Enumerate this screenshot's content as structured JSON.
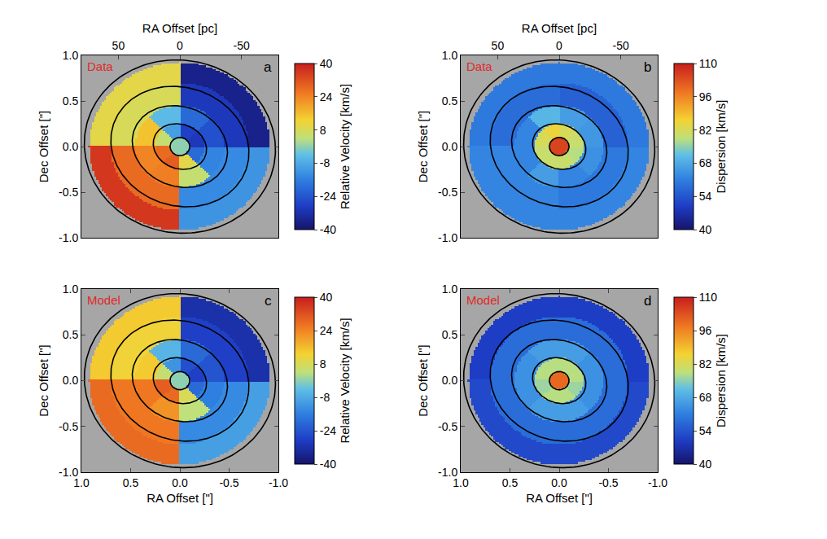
{
  "chart_data": [
    {
      "type": "heatmap",
      "title": "Data",
      "label": "a",
      "x2label": "RA Offset [pc]",
      "x2lim": [
        80,
        -80
      ],
      "x2ticks": [
        50,
        0,
        -50
      ],
      "xlim": [
        1,
        -1
      ],
      "ylabel": "Dec Offset [\"]",
      "ylim": [
        -1,
        1
      ],
      "yticks": [
        {
          "value": -1,
          "label": "-1.0"
        },
        -0.5,
        {
          "value": 0,
          "label": "0.0"
        },
        0.5,
        {
          "value": 1,
          "label": "1.0"
        }
      ],
      "colorbar_title": "Relative Velocity [km/s]",
      "colorbar_range": [
        -40,
        40
      ],
      "colorbar_ticks": [
        40,
        24,
        8,
        -8,
        -24,
        -40
      ],
      "cells": {
        "ring_edges": [
          0,
          0.1,
          0.25,
          0.45,
          0.7,
          0.92
        ],
        "values": [
          [
            0
          ],
          [
            -10,
            5,
            28,
            30,
            10,
            -20,
            -30,
            -28
          ],
          [
            -5,
            15,
            24,
            25,
            5,
            -15,
            -25,
            -20
          ],
          [
            8,
            28,
            -14,
            -30
          ],
          [
            10,
            36,
            -12,
            -36
          ]
        ]
      },
      "isophotes": [
        {
          "a": 0.1,
          "b": 0.1,
          "pa": 30
        },
        {
          "a": 0.28,
          "b": 0.24,
          "pa": 30
        },
        {
          "a": 0.5,
          "b": 0.43,
          "pa": 30
        },
        {
          "a": 0.72,
          "b": 0.64,
          "pa": 30
        },
        {
          "a": 0.98,
          "b": 0.94,
          "pa": 30
        }
      ]
    },
    {
      "type": "heatmap",
      "title": "Data",
      "label": "b",
      "x2label": "RA Offset [pc]",
      "x2lim": [
        80,
        -80
      ],
      "x2ticks": [
        50,
        0,
        -50
      ],
      "xlim": [
        1,
        -1
      ],
      "ylabel": "Dec Offset [\"]",
      "ylim": [
        -1,
        1
      ],
      "yticks": [
        {
          "value": -1,
          "label": "-1.0"
        },
        -0.5,
        {
          "value": 0,
          "label": "0.0"
        },
        0.5,
        {
          "value": 1,
          "label": "1.0"
        }
      ],
      "colorbar_title": "Dispersion [km/s]",
      "colorbar_range": [
        40,
        110
      ],
      "colorbar_ticks": [
        110,
        96,
        82,
        68,
        54,
        40
      ],
      "cells": {
        "ring_edges": [
          0,
          0.1,
          0.25,
          0.45,
          0.7,
          0.92
        ],
        "values": [
          [
            105
          ],
          [
            85,
            82,
            80,
            80,
            80,
            78,
            80,
            82
          ],
          [
            70,
            62,
            62,
            66,
            62,
            64,
            65,
            66
          ],
          [
            58,
            62,
            60,
            56
          ],
          [
            60,
            62,
            62,
            60
          ]
        ]
      },
      "isophotes": [
        {
          "a": 0.1,
          "b": 0.1,
          "pa": 30
        },
        {
          "a": 0.28,
          "b": 0.24,
          "pa": 30
        },
        {
          "a": 0.5,
          "b": 0.43,
          "pa": 30
        },
        {
          "a": 0.72,
          "b": 0.64,
          "pa": 30
        },
        {
          "a": 0.98,
          "b": 0.94,
          "pa": 30
        }
      ]
    },
    {
      "type": "heatmap",
      "title": "Model",
      "label": "c",
      "xlabel": "RA Offset [\"]",
      "xlim": [
        1,
        -1
      ],
      "xticks": [
        {
          "value": 1,
          "label": "1.0"
        },
        0.5,
        {
          "value": 0,
          "label": "0.0"
        },
        -0.5,
        {
          "value": -1,
          "label": "-1.0"
        }
      ],
      "ylabel": "Dec Offset [\"]",
      "ylim": [
        -1,
        1
      ],
      "yticks": [
        {
          "value": -1,
          "label": "-1.0"
        },
        -0.5,
        {
          "value": 0,
          "label": "0.0"
        },
        0.5,
        {
          "value": 1,
          "label": "1.0"
        }
      ],
      "colorbar_title": "Relative Velocity [km/s]",
      "colorbar_range": [
        -40,
        40
      ],
      "colorbar_ticks": [
        40,
        24,
        8,
        -8,
        -24,
        -40
      ],
      "cells": {
        "ring_edges": [
          0,
          0.1,
          0.25,
          0.45,
          0.7,
          0.92
        ],
        "values": [
          [
            0
          ],
          [
            -12,
            5,
            30,
            28,
            8,
            -20,
            -28,
            -25
          ],
          [
            -6,
            14,
            26,
            22,
            4,
            -16,
            -24,
            -20
          ],
          [
            12,
            26,
            -14,
            -28
          ],
          [
            14,
            28,
            -10,
            -32
          ]
        ]
      },
      "isophotes": [
        {
          "a": 0.1,
          "b": 0.1,
          "pa": 30
        },
        {
          "a": 0.28,
          "b": 0.24,
          "pa": 30
        },
        {
          "a": 0.5,
          "b": 0.43,
          "pa": 30
        },
        {
          "a": 0.72,
          "b": 0.64,
          "pa": 30
        },
        {
          "a": 0.98,
          "b": 0.94,
          "pa": 30
        }
      ]
    },
    {
      "type": "heatmap",
      "title": "Model",
      "label": "d",
      "xlabel": "RA Offset [\"]",
      "xlim": [
        1,
        -1
      ],
      "xticks": [
        {
          "value": 1,
          "label": "1.0"
        },
        0.5,
        {
          "value": 0,
          "label": "0.0"
        },
        -0.5,
        {
          "value": -1,
          "label": "-1.0"
        }
      ],
      "ylabel": "Dec Offset [\"]",
      "ylim": [
        -1,
        1
      ],
      "yticks": [
        {
          "value": -1,
          "label": "-1.0"
        },
        -0.5,
        {
          "value": 0,
          "label": "0.0"
        },
        0.5,
        {
          "value": 1,
          "label": "1.0"
        }
      ],
      "colorbar_title": "Dispersion [km/s]",
      "colorbar_range": [
        40,
        110
      ],
      "colorbar_ticks": [
        110,
        96,
        82,
        68,
        54,
        40
      ],
      "cells": {
        "ring_edges": [
          0,
          0.1,
          0.25,
          0.45,
          0.7,
          0.92
        ],
        "values": [
          [
            100
          ],
          [
            78,
            78,
            76,
            78,
            78,
            76,
            78,
            78
          ],
          [
            66,
            64,
            64,
            66,
            66,
            64,
            64,
            66
          ],
          [
            58,
            58,
            58,
            58
          ],
          [
            50,
            52,
            52,
            50
          ]
        ]
      },
      "isophotes": [
        {
          "a": 0.1,
          "b": 0.1,
          "pa": 30
        },
        {
          "a": 0.28,
          "b": 0.24,
          "pa": 30
        },
        {
          "a": 0.5,
          "b": 0.43,
          "pa": 30
        },
        {
          "a": 0.72,
          "b": 0.64,
          "pa": 30
        },
        {
          "a": 0.98,
          "b": 0.94,
          "pa": 30
        }
      ]
    }
  ]
}
